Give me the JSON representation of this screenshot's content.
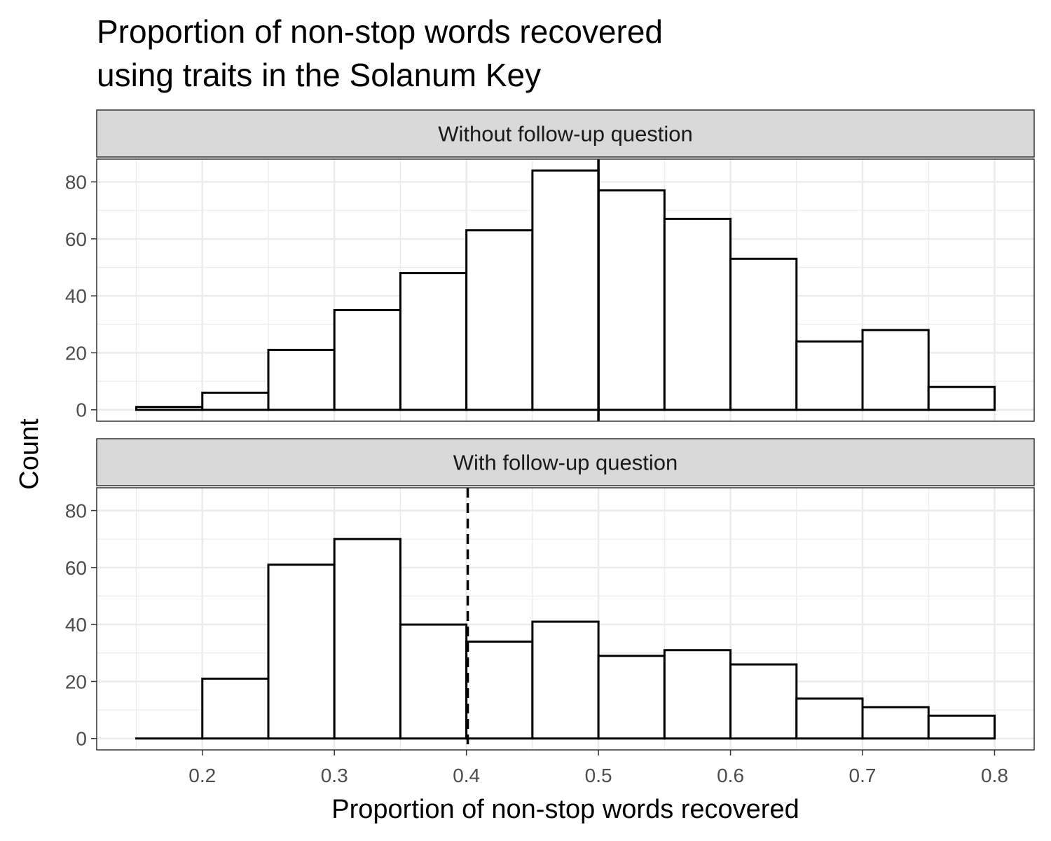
{
  "chart_data": {
    "type": "bar",
    "title_lines": [
      "Proportion of non-stop words recovered",
      "using traits in the Solanum Key"
    ],
    "xlabel": "Proportion of non-stop words recovered",
    "ylabel": "Count",
    "xlim": [
      0.12,
      0.83
    ],
    "ylim": [
      -4,
      88
    ],
    "x_ticks": [
      0.2,
      0.3,
      0.4,
      0.5,
      0.6,
      0.7,
      0.8
    ],
    "x_tick_labels": [
      "0.2",
      "0.3",
      "0.4",
      "0.5",
      "0.6",
      "0.7",
      "0.8"
    ],
    "y_ticks": [
      0,
      20,
      40,
      60,
      80
    ],
    "y_tick_labels": [
      "0",
      "20",
      "40",
      "60",
      "80"
    ],
    "bin_edges": [
      0.15,
      0.2,
      0.25,
      0.3,
      0.35,
      0.4,
      0.45,
      0.5,
      0.55,
      0.6,
      0.65,
      0.7,
      0.75,
      0.8
    ],
    "grid": true,
    "panels": [
      {
        "strip": "Without follow-up question",
        "counts": [
          1,
          6,
          21,
          35,
          48,
          63,
          84,
          77,
          67,
          53,
          24,
          28,
          8
        ],
        "vline": 0.5,
        "vline_style": "solid"
      },
      {
        "strip": "With follow-up question",
        "counts": [
          0,
          21,
          61,
          70,
          40,
          34,
          41,
          29,
          31,
          26,
          14,
          11,
          8
        ],
        "vline": 0.401,
        "vline_style": "dashed"
      }
    ],
    "colors": {
      "bar_fill": "#ffffff",
      "bar_stroke": "#000000",
      "strip_fill": "#d9d9d9",
      "strip_border": "#333333",
      "grid": "#ebebeb",
      "panel_border": "#333333",
      "tick_text": "#4d4d4d"
    }
  }
}
